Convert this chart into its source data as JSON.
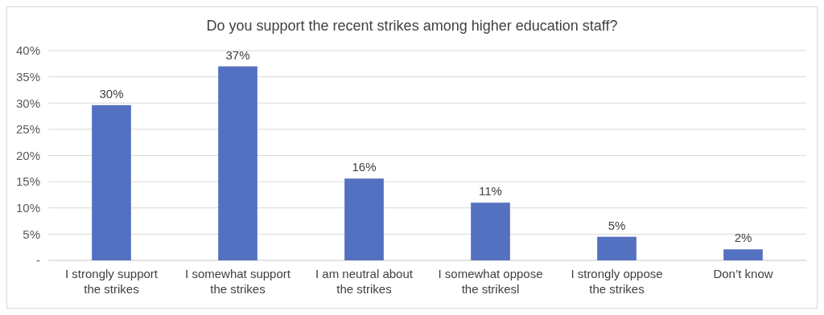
{
  "chart_data": {
    "type": "bar",
    "title": "Do you support the recent strikes among higher education staff?",
    "categories": [
      "I strongly support the strikes",
      "I somewhat support the strikes",
      "I am neutral about the strikes",
      "I somewhat oppose the strikesl",
      "I strongly oppose the strikes",
      "Don’t know"
    ],
    "values": [
      29.6,
      37,
      15.6,
      11,
      4.5,
      2.1
    ],
    "value_labels": [
      "30%",
      "37%",
      "16%",
      "11%",
      "5%",
      "2%"
    ],
    "color": "#5470c0",
    "ylim": [
      0,
      40
    ],
    "yticks": [
      {
        "value": 0,
        "label": "-"
      },
      {
        "value": 5,
        "label": "5%"
      },
      {
        "value": 10,
        "label": "10%"
      },
      {
        "value": 15,
        "label": "15%"
      },
      {
        "value": 20,
        "label": "20%"
      },
      {
        "value": 25,
        "label": "25%"
      },
      {
        "value": 30,
        "label": "30%"
      },
      {
        "value": 35,
        "label": "35%"
      },
      {
        "value": 40,
        "label": "40%"
      }
    ],
    "grid": "y"
  }
}
